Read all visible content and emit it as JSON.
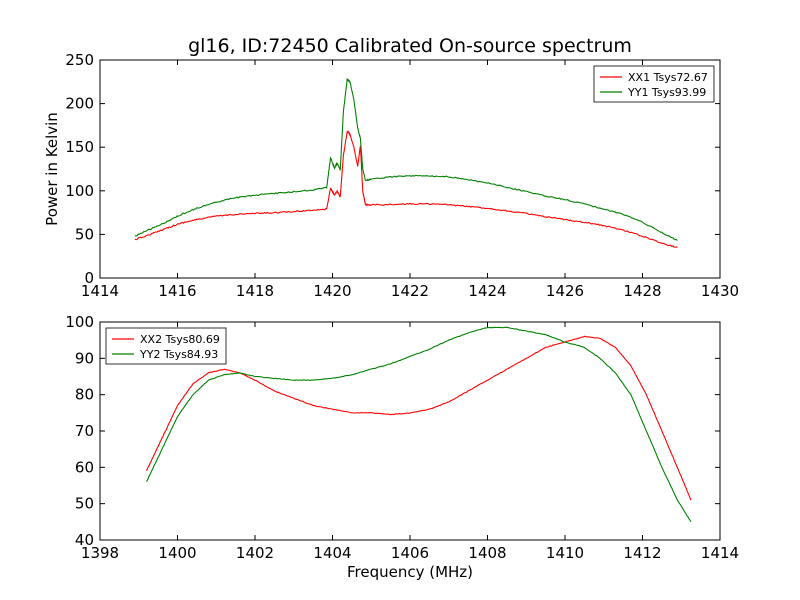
{
  "figure": {
    "title": "gl16, ID:72450 Calibrated On-source spectrum",
    "colors": {
      "red": "#ff0000",
      "green": "#008000"
    }
  },
  "chart_data": [
    {
      "type": "line",
      "title": "gl16, ID:72450 Calibrated On-source spectrum",
      "xlabel": "",
      "ylabel": "Power in Kelvin",
      "xlim": [
        1414,
        1430
      ],
      "ylim": [
        0,
        250
      ],
      "xticks": [
        1414,
        1416,
        1418,
        1420,
        1422,
        1424,
        1426,
        1428,
        1430
      ],
      "yticks": [
        0,
        50,
        100,
        150,
        200,
        250
      ],
      "legend": "top-right",
      "grid": false,
      "series": [
        {
          "name": "XX1 Tsys72.67",
          "color": "#ff0000",
          "x": [
            1414.9,
            1415.3,
            1415.7,
            1416.1,
            1416.5,
            1417.0,
            1417.5,
            1418.0,
            1418.5,
            1419.0,
            1419.5,
            1419.85,
            1419.95,
            1420.05,
            1420.12,
            1420.2,
            1420.28,
            1420.38,
            1420.45,
            1420.55,
            1420.65,
            1420.72,
            1420.78,
            1420.85,
            1421.0,
            1421.5,
            1422.0,
            1422.5,
            1423.0,
            1423.5,
            1424.0,
            1424.5,
            1425.0,
            1425.5,
            1426.0,
            1426.5,
            1427.0,
            1427.5,
            1428.0,
            1428.5,
            1428.9
          ],
          "y": [
            44,
            50,
            57,
            63,
            67,
            71,
            73,
            74,
            75,
            76,
            78,
            79,
            103,
            95,
            100,
            93,
            140,
            168,
            165,
            150,
            128,
            152,
            100,
            84,
            84,
            84,
            85,
            85,
            84,
            82,
            80,
            77,
            74,
            70,
            67,
            64,
            60,
            55,
            48,
            40,
            35
          ]
        },
        {
          "name": "YY1 Tsys93.99",
          "color": "#008000",
          "x": [
            1414.9,
            1415.3,
            1415.7,
            1416.1,
            1416.5,
            1417.0,
            1417.5,
            1418.0,
            1418.5,
            1419.0,
            1419.5,
            1419.85,
            1419.95,
            1420.05,
            1420.12,
            1420.2,
            1420.28,
            1420.38,
            1420.45,
            1420.55,
            1420.65,
            1420.72,
            1420.78,
            1420.85,
            1421.0,
            1421.5,
            1422.0,
            1422.5,
            1423.0,
            1423.5,
            1424.0,
            1424.5,
            1425.0,
            1425.5,
            1426.0,
            1426.5,
            1427.0,
            1427.5,
            1428.0,
            1428.5,
            1428.9
          ],
          "y": [
            48,
            56,
            64,
            73,
            80,
            87,
            92,
            95,
            97,
            99,
            101,
            104,
            138,
            126,
            132,
            124,
            190,
            228,
            225,
            205,
            172,
            160,
            125,
            112,
            113,
            116,
            117,
            117,
            116,
            113,
            109,
            104,
            99,
            94,
            90,
            85,
            79,
            73,
            64,
            52,
            43
          ]
        }
      ]
    },
    {
      "type": "line",
      "title": "",
      "xlabel": "Frequency (MHz)",
      "ylabel": "",
      "xlim": [
        1398,
        1414
      ],
      "ylim": [
        40,
        100
      ],
      "xticks": [
        1398,
        1400,
        1402,
        1404,
        1406,
        1408,
        1410,
        1412,
        1414
      ],
      "yticks": [
        40,
        50,
        60,
        70,
        80,
        90,
        100
      ],
      "legend": "top-left",
      "grid": false,
      "series": [
        {
          "name": "XX2 Tsys80.69",
          "color": "#ff0000",
          "x": [
            1399.2,
            1399.6,
            1400.0,
            1400.4,
            1400.8,
            1401.2,
            1401.6,
            1402.0,
            1402.5,
            1403.0,
            1403.5,
            1404.0,
            1404.5,
            1405.0,
            1405.5,
            1406.0,
            1406.5,
            1407.0,
            1407.5,
            1408.0,
            1408.5,
            1409.0,
            1409.5,
            1410.0,
            1410.5,
            1410.9,
            1411.3,
            1411.7,
            1412.1,
            1412.5,
            1412.9,
            1413.25
          ],
          "y": [
            59,
            68,
            77,
            83,
            86,
            87,
            86,
            84,
            81,
            79,
            77,
            76,
            75,
            75,
            74.5,
            75,
            76,
            78,
            81,
            84,
            87,
            90,
            93,
            94.5,
            96,
            95.5,
            93,
            88,
            80,
            70,
            60,
            51
          ]
        },
        {
          "name": "YY2 Tsys84.93",
          "color": "#008000",
          "x": [
            1399.2,
            1399.6,
            1400.0,
            1400.4,
            1400.8,
            1401.2,
            1401.6,
            1402.0,
            1402.5,
            1403.0,
            1403.5,
            1404.0,
            1404.5,
            1405.0,
            1405.5,
            1406.0,
            1406.5,
            1407.0,
            1407.5,
            1408.0,
            1408.5,
            1409.0,
            1409.5,
            1410.0,
            1410.5,
            1410.9,
            1411.3,
            1411.7,
            1412.1,
            1412.5,
            1412.9,
            1413.25
          ],
          "y": [
            56,
            65,
            74,
            80,
            84,
            85.5,
            86,
            85,
            84.5,
            84,
            84,
            84.5,
            85.5,
            87,
            88.5,
            90.5,
            92.5,
            95,
            97,
            98.5,
            98.5,
            97.5,
            96.5,
            94.5,
            93,
            90,
            86,
            80,
            70,
            60,
            51,
            45
          ]
        }
      ]
    }
  ]
}
